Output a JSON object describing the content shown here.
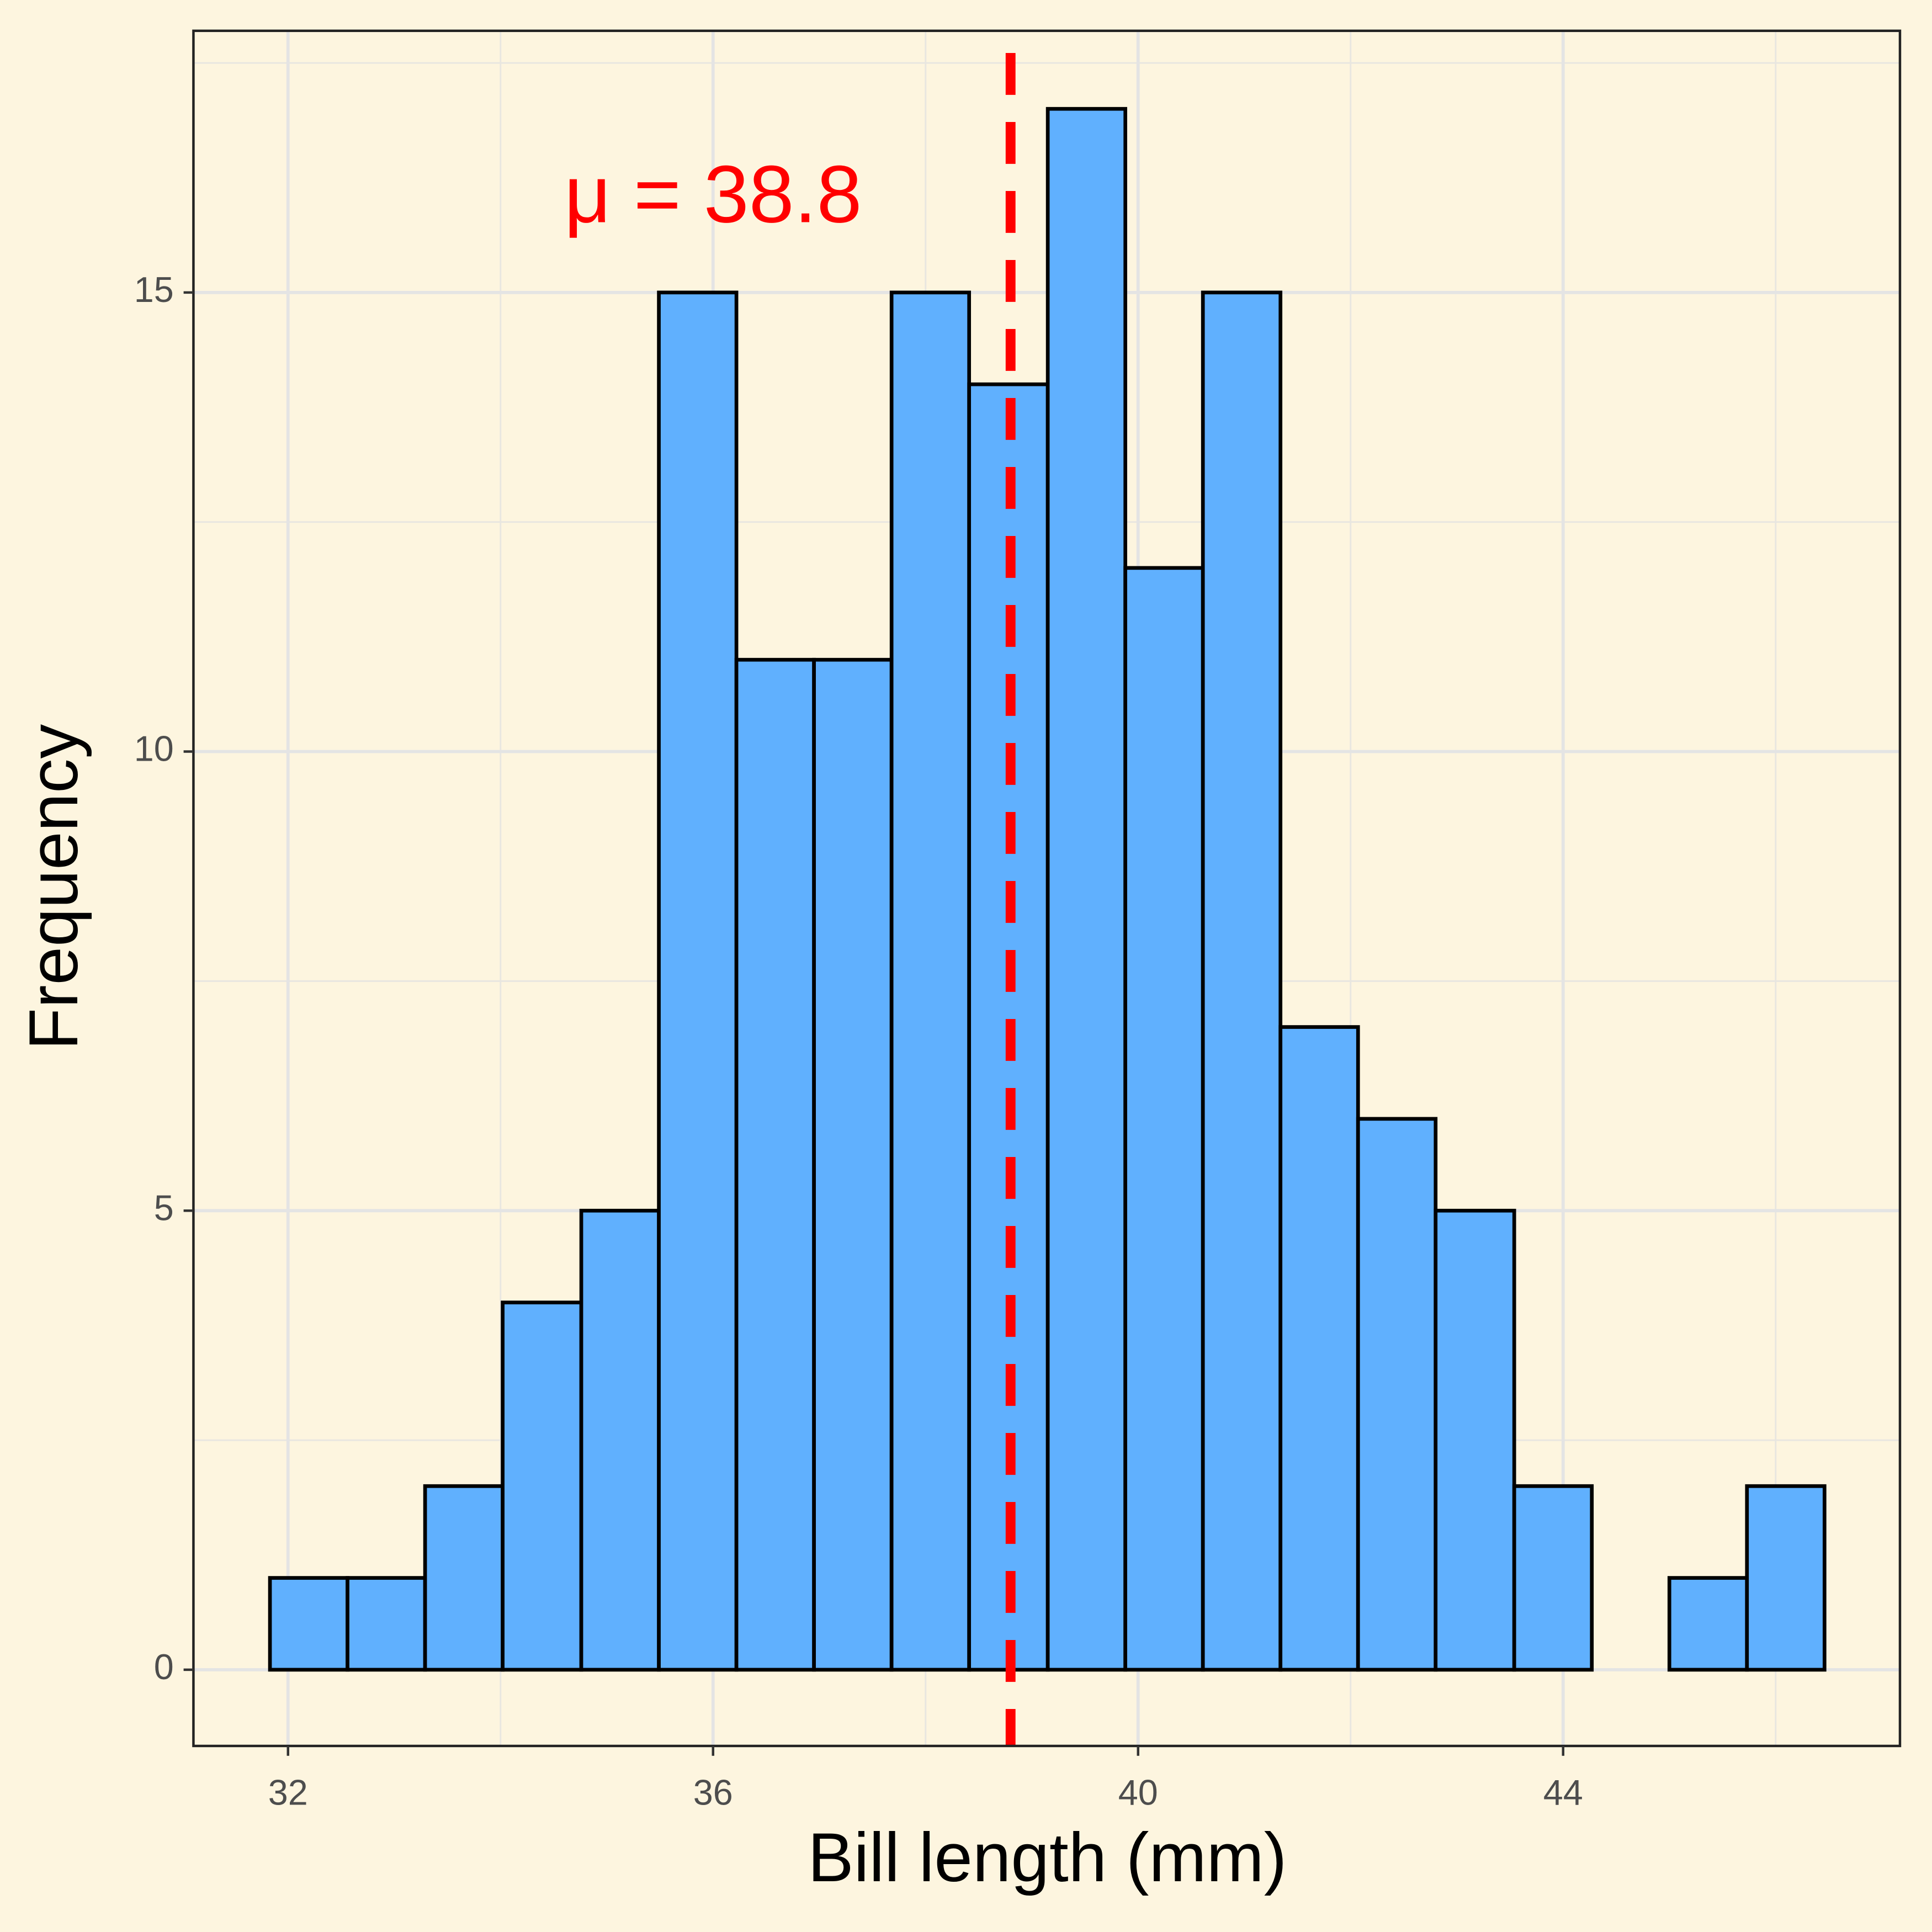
{
  "chart_data": {
    "type": "histogram",
    "x_label": "Bill length (mm)",
    "y_label": "Frequency",
    "bins": [
      31.83,
      32.56,
      33.29,
      34.02,
      34.76,
      35.49,
      36.22,
      36.95,
      37.68,
      38.41,
      39.15,
      39.88,
      40.61,
      41.34,
      42.07,
      42.8,
      43.54,
      44.27,
      45.0,
      45.73,
      46.46
    ],
    "values": [
      1,
      1,
      2,
      4,
      5,
      15,
      11,
      11,
      15,
      14,
      17,
      12,
      15,
      7,
      6,
      5,
      2,
      0,
      1,
      2
    ],
    "color": "#60b0fe",
    "edge_color": "#000000",
    "xlim": [
      31.11,
      47.17
    ],
    "ylim": [
      -0.83,
      17.85
    ],
    "xticks": [
      32,
      36,
      40,
      44
    ],
    "yticks": [
      0,
      5,
      10,
      15
    ],
    "x_minor_grid": [
      34,
      38,
      42,
      46
    ],
    "y_minor_grid": [
      2.5,
      7.5,
      12.5,
      17.5
    ],
    "grid": true,
    "mean_line": {
      "value": 38.8,
      "color": "#ff0000"
    },
    "annotation": {
      "text": "μ = 38.8",
      "x": 36,
      "y": 16,
      "color": "#ff0000"
    }
  }
}
